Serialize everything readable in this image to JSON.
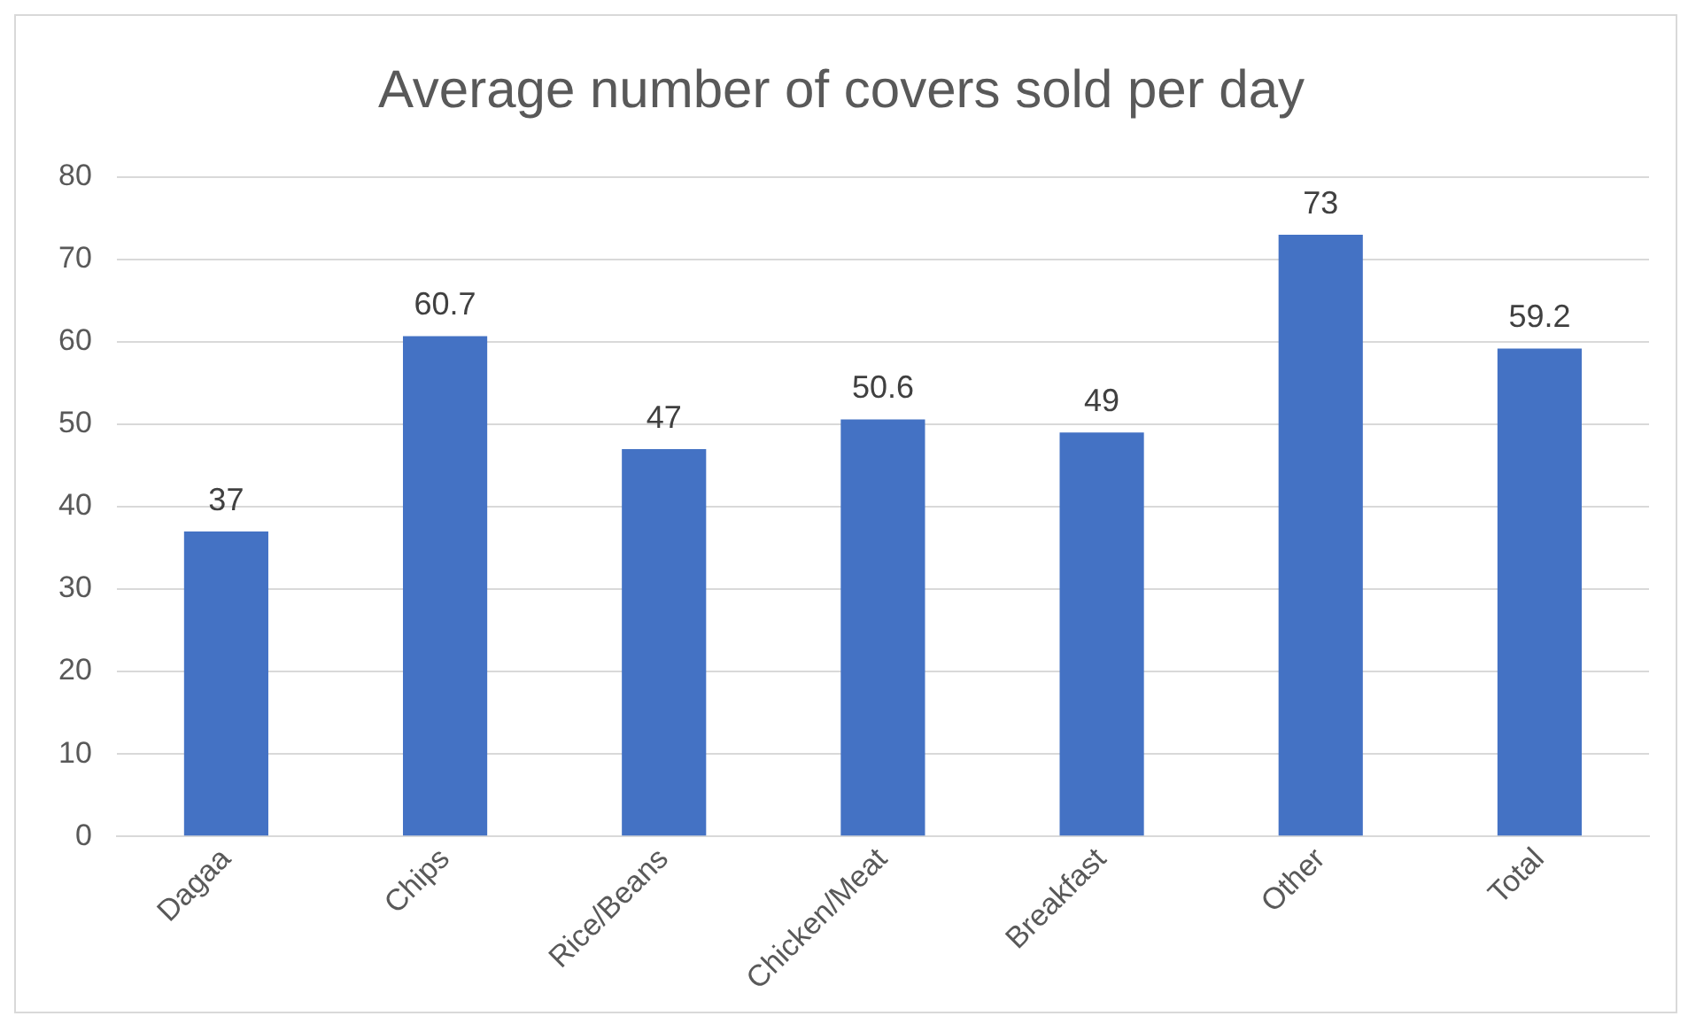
{
  "chart_data": {
    "type": "bar",
    "title": "Average number of covers sold per day",
    "categories": [
      "Dagaa",
      "Chips",
      "Rice/Beans",
      "Chicken/Meat",
      "Breakfast",
      "Other",
      "Total"
    ],
    "values": [
      37,
      60.7,
      47,
      50.6,
      49,
      73,
      59.2
    ],
    "color": "#4472c4",
    "ylim": [
      0,
      80
    ],
    "yticks": [
      0,
      10,
      20,
      30,
      40,
      50,
      60,
      70,
      80
    ],
    "grid": "y",
    "data_labels": true
  }
}
